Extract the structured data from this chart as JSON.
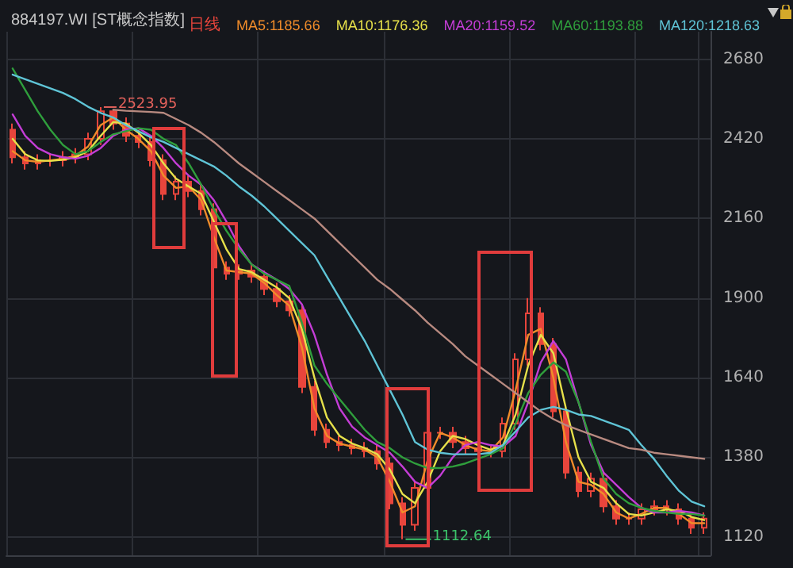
{
  "chart_data": {
    "type": "candlestick",
    "title": "884197.WI [ST概念指数]",
    "categories": [
      null,
      null,
      null,
      null,
      null,
      null,
      null,
      null,
      null,
      null,
      null,
      null,
      null,
      null,
      null,
      null,
      null,
      null,
      null,
      null,
      null,
      null,
      null,
      null,
      null,
      null,
      null,
      null,
      null,
      null,
      null,
      null,
      null,
      null,
      null,
      null,
      null,
      null,
      null,
      null,
      null,
      null,
      null,
      null,
      null,
      null,
      null,
      null,
      null,
      null,
      null,
      null,
      null,
      null,
      null,
      null
    ],
    "series": [
      {
        "name": "日线",
        "color": "#e8453c",
        "ohlc": [
          [
            2450,
            2470,
            2340,
            2360
          ],
          [
            2360,
            2380,
            2320,
            2340
          ],
          [
            2340,
            2370,
            2320,
            2350
          ],
          [
            2350,
            2370,
            2330,
            2350
          ],
          [
            2350,
            2380,
            2330,
            2360
          ],
          [
            2360,
            2390,
            2340,
            2370
          ],
          [
            2370,
            2440,
            2350,
            2420
          ],
          [
            2420,
            2523.95,
            2400,
            2510
          ],
          [
            2510,
            2515,
            2450,
            2470
          ],
          [
            2470,
            2490,
            2410,
            2430
          ],
          [
            2430,
            2450,
            2390,
            2410
          ],
          [
            2410,
            2430,
            2330,
            2350
          ],
          [
            2350,
            2370,
            2220,
            2240
          ],
          [
            2240,
            2300,
            2220,
            2280
          ],
          [
            2280,
            2300,
            2230,
            2250
          ],
          [
            2250,
            2270,
            2170,
            2190
          ],
          [
            2190,
            2210,
            1980,
            2000
          ],
          [
            2000,
            2020,
            1960,
            1980
          ],
          [
            1980,
            2010,
            1960,
            1990
          ],
          [
            1990,
            2010,
            1950,
            1970
          ],
          [
            1970,
            1990,
            1910,
            1930
          ],
          [
            1930,
            1950,
            1870,
            1890
          ],
          [
            1890,
            1910,
            1840,
            1860
          ],
          [
            1860,
            1880,
            1590,
            1610
          ],
          [
            1610,
            1630,
            1450,
            1470
          ],
          [
            1470,
            1490,
            1410,
            1430
          ],
          [
            1430,
            1450,
            1400,
            1420
          ],
          [
            1420,
            1440,
            1390,
            1410
          ],
          [
            1410,
            1430,
            1380,
            1400
          ],
          [
            1400,
            1420,
            1340,
            1360
          ],
          [
            1360,
            1380,
            1210,
            1230
          ],
          [
            1230,
            1250,
            1112.64,
            1160
          ],
          [
            1160,
            1300,
            1140,
            1280
          ],
          [
            1280,
            1480,
            1260,
            1460
          ],
          [
            1460,
            1480,
            1440,
            1460
          ],
          [
            1460,
            1480,
            1410,
            1430
          ],
          [
            1430,
            1450,
            1390,
            1410
          ],
          [
            1410,
            1430,
            1380,
            1400
          ],
          [
            1400,
            1420,
            1380,
            1400
          ],
          [
            1400,
            1510,
            1380,
            1490
          ],
          [
            1490,
            1720,
            1470,
            1700
          ],
          [
            1700,
            1900,
            1680,
            1850
          ],
          [
            1850,
            1870,
            1730,
            1750
          ],
          [
            1750,
            1770,
            1510,
            1530
          ],
          [
            1530,
            1550,
            1310,
            1330
          ],
          [
            1330,
            1350,
            1250,
            1270
          ],
          [
            1270,
            1330,
            1250,
            1310
          ],
          [
            1310,
            1330,
            1200,
            1220
          ],
          [
            1220,
            1240,
            1160,
            1180
          ],
          [
            1180,
            1200,
            1160,
            1180
          ],
          [
            1180,
            1230,
            1160,
            1210
          ],
          [
            1210,
            1240,
            1190,
            1220
          ],
          [
            1220,
            1240,
            1190,
            1210
          ],
          [
            1210,
            1230,
            1160,
            1180
          ],
          [
            1180,
            1200,
            1130,
            1150
          ],
          [
            1150,
            1200,
            1130,
            1180
          ]
        ]
      },
      {
        "name": "MA5:1185.66",
        "type": "line",
        "color": "#f08c2a",
        "values": [
          2380,
          2350,
          2345,
          2350,
          2355,
          2365,
          2395,
          2465,
          2490,
          2450,
          2420,
          2380,
          2300,
          2260,
          2265,
          2220,
          2100,
          1990,
          1985,
          1980,
          1950,
          1910,
          1875,
          1740,
          1540,
          1450,
          1425,
          1415,
          1405,
          1380,
          1300,
          1200,
          1220,
          1370,
          1460,
          1445,
          1420,
          1405,
          1400,
          1445,
          1600,
          1780,
          1800,
          1640,
          1430,
          1300,
          1290,
          1260,
          1200,
          1180,
          1195,
          1215,
          1215,
          1195,
          1165,
          1165
        ]
      },
      {
        "name": "MA10:1176.36",
        "type": "line",
        "color": "#e6e04a",
        "values": [
          2420,
          2370,
          2350,
          2348,
          2352,
          2360,
          2380,
          2430,
          2475,
          2470,
          2440,
          2400,
          2340,
          2290,
          2265,
          2240,
          2150,
          2060,
          1995,
          1985,
          1960,
          1935,
          1900,
          1800,
          1640,
          1510,
          1450,
          1425,
          1410,
          1390,
          1340,
          1260,
          1230,
          1300,
          1400,
          1450,
          1440,
          1420,
          1405,
          1420,
          1520,
          1680,
          1780,
          1720,
          1540,
          1380,
          1300,
          1280,
          1230,
          1195,
          1190,
          1200,
          1210,
          1205,
          1185,
          1175
        ]
      },
      {
        "name": "MA20:1159.52",
        "type": "line",
        "color": "#c43dd6",
        "values": [
          2500,
          2430,
          2390,
          2370,
          2360,
          2355,
          2365,
          2390,
          2430,
          2450,
          2455,
          2430,
          2390,
          2340,
          2300,
          2270,
          2220,
          2150,
          2070,
          2010,
          1985,
          1960,
          1930,
          1880,
          1780,
          1650,
          1540,
          1480,
          1445,
          1420,
          1395,
          1350,
          1300,
          1280,
          1320,
          1380,
          1420,
          1430,
          1420,
          1415,
          1450,
          1560,
          1690,
          1760,
          1700,
          1560,
          1420,
          1330,
          1290,
          1250,
          1215,
          1200,
          1200,
          1205,
          1200,
          1190
        ]
      },
      {
        "name": "MA60:1193.88",
        "type": "line",
        "color": "#2f9e3c",
        "values": [
          2650,
          2580,
          2510,
          2450,
          2400,
          2370,
          2380,
          2410,
          2435,
          2445,
          2455,
          2450,
          2420,
          2400,
          2340,
          2270,
          2190,
          2120,
          2060,
          2010,
          1980,
          1960,
          1940,
          1820,
          1680,
          1620,
          1570,
          1520,
          1470,
          1430,
          1410,
          1380,
          1360,
          1345,
          1345,
          1350,
          1360,
          1375,
          1390,
          1410,
          1490,
          1590,
          1650,
          1690,
          1660,
          1560,
          1430,
          1310,
          1260,
          1230,
          1215,
          1205,
          1200,
          1195,
          1195,
          1190
        ]
      },
      {
        "name": "MA120:1218.63",
        "type": "line",
        "color": "#5fc4d6",
        "values": [
          2630,
          2615,
          2600,
          2585,
          2570,
          2550,
          2525,
          2505,
          2490,
          2465,
          2445,
          2425,
          2410,
          2390,
          2370,
          2350,
          2330,
          2300,
          2265,
          2235,
          2200,
          2160,
          2120,
          2080,
          2040,
          1970,
          1900,
          1830,
          1760,
          1680,
          1600,
          1520,
          1430,
          1405,
          1395,
          1390,
          1390,
          1390,
          1395,
          1420,
          1465,
          1510,
          1535,
          1545,
          1535,
          1520,
          1515,
          1500,
          1485,
          1470,
          1420,
          1375,
          1320,
          1270,
          1235,
          1220
        ]
      },
      {
        "type": "line",
        "color": "#b88a80",
        "values": [
          null,
          null,
          null,
          null,
          null,
          null,
          null,
          null,
          2515,
          2512,
          2510,
          2508,
          2505,
          2485,
          2465,
          2440,
          2410,
          2375,
          2340,
          2310,
          2280,
          2250,
          2220,
          2190,
          2160,
          2120,
          2080,
          2040,
          2000,
          1960,
          1930,
          1895,
          1860,
          1820,
          1785,
          1750,
          1710,
          1680,
          1650,
          1620,
          1590,
          1560,
          1530,
          1505,
          1485,
          1470,
          1455,
          1440,
          1425,
          1410,
          1405,
          1395,
          1390,
          1385,
          1380,
          1375
        ]
      }
    ],
    "ylim": [
      1060,
      2770
    ],
    "yticks": [
      1120,
      1380,
      1640,
      1900,
      2160,
      2420,
      2680
    ],
    "annotations": [
      "2523.95",
      "1112.64"
    ],
    "grid": true,
    "legend": "top right",
    "line_style": "solid"
  }
}
